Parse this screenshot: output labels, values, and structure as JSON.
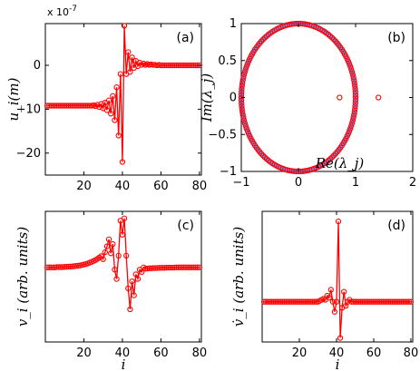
{
  "chart_data": [
    {
      "id": "a",
      "type": "line",
      "panel_label": "(a)",
      "ylabel": "u_i(m)",
      "xlabel": "",
      "exponent_label": "x 10",
      "exponent_power": "-7",
      "xlim": [
        0,
        81
      ],
      "ylim": [
        -25,
        9.5
      ],
      "xticks": [
        20,
        40,
        60,
        80
      ],
      "yticks": [
        -20,
        -10,
        0
      ],
      "series": [
        {
          "x": [
            1,
            2,
            3,
            4,
            5,
            6,
            7,
            8,
            9,
            10,
            11,
            12,
            13,
            14,
            15,
            16,
            17,
            18,
            19,
            20,
            21,
            22,
            23,
            24,
            25,
            26,
            27,
            28,
            29,
            30,
            31,
            32,
            33,
            34,
            35,
            36,
            37,
            38,
            39,
            40,
            41,
            42,
            43,
            44,
            45,
            46,
            47,
            48,
            49,
            50,
            51,
            52,
            53,
            54,
            55,
            56,
            57,
            58,
            59,
            60,
            61,
            62,
            63,
            64,
            65,
            66,
            67,
            68,
            69,
            70,
            71,
            72,
            73,
            74,
            75,
            76,
            77,
            78,
            79,
            80
          ],
          "values": [
            -9.2,
            -9.2,
            -9.2,
            -9.2,
            -9.2,
            -9.2,
            -9.2,
            -9.2,
            -9.2,
            -9.2,
            -9.2,
            -9.2,
            -9.2,
            -9.2,
            -9.2,
            -9.2,
            -9.2,
            -9.2,
            -9.2,
            -9.2,
            -9.2,
            -9.2,
            -9.2,
            -9.2,
            -9.1,
            -9.3,
            -9.0,
            -9.5,
            -8.8,
            -9.8,
            -8.5,
            -10.2,
            -8.0,
            -11.0,
            -7.0,
            -12.5,
            -5.0,
            -16.0,
            -2.0,
            -22.0,
            9.0,
            -2.0,
            3.0,
            -1.5,
            1.8,
            -0.6,
            1.0,
            -0.2,
            0.6,
            0.1,
            0.4,
            0.1,
            0.3,
            0.1,
            0.2,
            0.1,
            0.1,
            0.0,
            0.1,
            0.0,
            0.0,
            0.0,
            0.0,
            0.0,
            0.0,
            0.0,
            0.0,
            0.0,
            0.0,
            0.0,
            0.0,
            0.0,
            0.0,
            0.0,
            0.0,
            0.0,
            0.0,
            0.0,
            0.0,
            0.0
          ]
        }
      ]
    },
    {
      "id": "b",
      "type": "scatter",
      "panel_label": "(b)",
      "ylabel": "Im(λ_j)",
      "xlabel": "Re(λ_j)",
      "xlim": [
        -1,
        2
      ],
      "ylim": [
        -1,
        1
      ],
      "xticks": [
        -1,
        0,
        1,
        2
      ],
      "yticks": [
        -1,
        -0.5,
        0,
        0.5,
        1
      ],
      "ytick_labels": [
        "−1",
        "−0.5",
        "0",
        "0.5",
        "1"
      ],
      "xtick_labels": [
        "−1",
        "0",
        "1",
        "2"
      ],
      "unit_circle_points": 160,
      "outliers": [
        {
          "x": 0.72,
          "y": 0.0
        },
        {
          "x": 1.4,
          "y": 0.0
        }
      ]
    },
    {
      "id": "c",
      "type": "line",
      "panel_label": "(c)",
      "ylabel": "v_i (arb. units)",
      "xlabel": "i",
      "xlim": [
        0,
        81
      ],
      "ylim": [
        -3.2,
        2.4
      ],
      "xticks": [
        20,
        40,
        60,
        80
      ],
      "yticks": [],
      "series": [
        {
          "x": [
            1,
            2,
            3,
            4,
            5,
            6,
            7,
            8,
            9,
            10,
            11,
            12,
            13,
            14,
            15,
            16,
            17,
            18,
            19,
            20,
            21,
            22,
            23,
            24,
            25,
            26,
            27,
            28,
            29,
            30,
            31,
            32,
            33,
            34,
            35,
            36,
            37,
            38,
            39,
            40,
            41,
            42,
            43,
            44,
            45,
            46,
            47,
            48,
            49,
            50,
            51,
            52,
            53,
            54,
            55,
            56,
            57,
            58,
            59,
            60,
            61,
            62,
            63,
            64,
            65,
            66,
            67,
            68,
            69,
            70,
            71,
            72,
            73,
            74,
            75,
            76,
            77,
            78,
            79,
            80
          ],
          "values": [
            0.0,
            0.0,
            0.0,
            0.0,
            0.0,
            0.01,
            0.01,
            0.01,
            0.01,
            0.02,
            0.02,
            0.03,
            0.03,
            0.04,
            0.05,
            0.06,
            0.07,
            0.08,
            0.1,
            0.12,
            0.14,
            0.17,
            0.2,
            0.23,
            0.27,
            0.31,
            0.36,
            0.42,
            0.48,
            0.35,
            0.65,
            0.9,
            1.2,
            0.6,
            1.0,
            -0.1,
            -0.5,
            0.5,
            2.0,
            1.4,
            2.1,
            0.5,
            -0.9,
            -1.8,
            -0.6,
            -1.2,
            -0.3,
            -0.5,
            -0.1,
            -0.2,
            0.0,
            -0.06,
            -0.05,
            -0.04,
            -0.04,
            -0.03,
            -0.03,
            -0.03,
            -0.02,
            -0.02,
            -0.02,
            -0.02,
            -0.01,
            -0.01,
            -0.01,
            -0.01,
            -0.01,
            0.0,
            0.0,
            0.0,
            0.0,
            0.0,
            0.0,
            0.0,
            0.0,
            0.0,
            0.0,
            0.0,
            0.0,
            0.0
          ]
        }
      ]
    },
    {
      "id": "d",
      "type": "line",
      "panel_label": "(d)",
      "ylabel": "v̇_i (arb. units)",
      "xlabel": "i",
      "xlim": [
        0,
        81
      ],
      "ylim": [
        -2.0,
        4.5
      ],
      "xticks": [
        20,
        40,
        60,
        80
      ],
      "yticks": [],
      "series": [
        {
          "x": [
            1,
            2,
            3,
            4,
            5,
            6,
            7,
            8,
            9,
            10,
            11,
            12,
            13,
            14,
            15,
            16,
            17,
            18,
            19,
            20,
            21,
            22,
            23,
            24,
            25,
            26,
            27,
            28,
            29,
            30,
            31,
            32,
            33,
            34,
            35,
            36,
            37,
            38,
            39,
            40,
            41,
            42,
            43,
            44,
            45,
            46,
            47,
            48,
            49,
            50,
            51,
            52,
            53,
            54,
            55,
            56,
            57,
            58,
            59,
            60,
            61,
            62,
            63,
            64,
            65,
            66,
            67,
            68,
            69,
            70,
            71,
            72,
            73,
            74,
            75,
            76,
            77,
            78,
            79,
            80
          ],
          "values": [
            0.0,
            0.0,
            0.0,
            0.0,
            0.0,
            0.0,
            0.0,
            0.0,
            0.0,
            0.0,
            0.0,
            0.0,
            0.0,
            0.0,
            0.0,
            0.0,
            0.0,
            0.0,
            0.0,
            0.0,
            0.0,
            0.0,
            0.0,
            0.0,
            0.0,
            0.0,
            0.0,
            0.0,
            0.0,
            0.0,
            0.05,
            0.1,
            0.15,
            0.1,
            0.3,
            0.2,
            0.6,
            0.0,
            -0.5,
            0.0,
            4.0,
            -1.8,
            -0.3,
            0.5,
            -0.2,
            0.0,
            0.1,
            0.0,
            0.0,
            0.0,
            0.0,
            0.0,
            0.0,
            0.0,
            0.0,
            0.0,
            0.0,
            0.0,
            0.0,
            0.0,
            0.0,
            0.0,
            0.0,
            0.0,
            0.0,
            0.0,
            0.0,
            0.0,
            0.0,
            0.0,
            0.0,
            0.0,
            0.0,
            0.0,
            0.0,
            0.0,
            0.0,
            0.0,
            0.0,
            0.0
          ]
        }
      ]
    }
  ]
}
